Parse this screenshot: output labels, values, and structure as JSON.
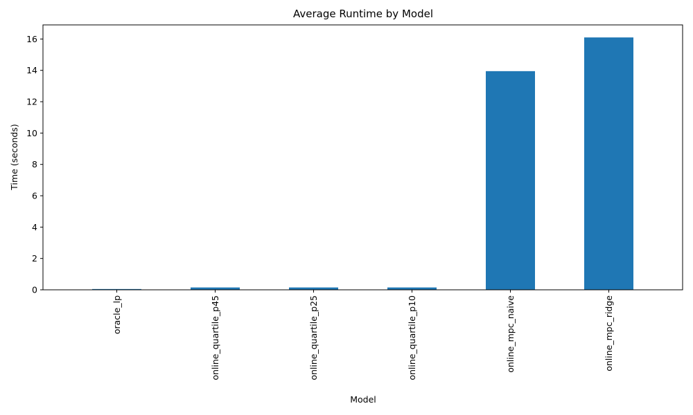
{
  "chart_data": {
    "type": "bar",
    "title": "Average Runtime by Model",
    "xlabel": "Model",
    "ylabel": "Time (seconds)",
    "categories": [
      "oracle_lp",
      "online_quartile_p45",
      "online_quartile_p25",
      "online_quartile_p10",
      "online_mpc_naive",
      "online_mpc_ridge"
    ],
    "values": [
      0.05,
      0.15,
      0.15,
      0.15,
      13.95,
      16.1
    ],
    "ylim": [
      0,
      16.9
    ],
    "yticks": [
      0,
      2,
      4,
      6,
      8,
      10,
      12,
      14,
      16
    ],
    "grid": false,
    "legend": "none",
    "bar_color": "#1f77b4"
  }
}
